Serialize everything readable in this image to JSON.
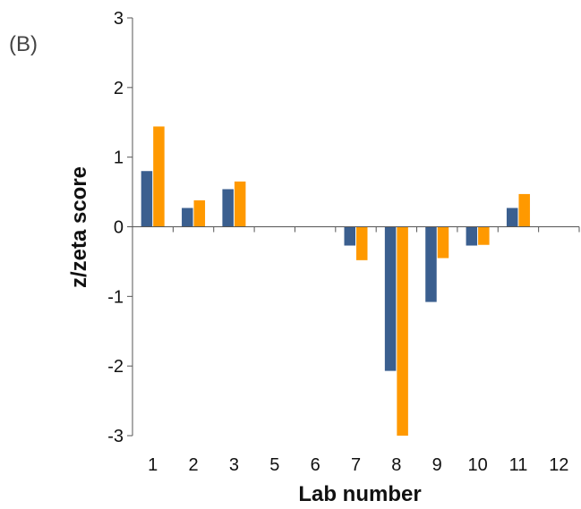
{
  "panel_label": "(B)",
  "chart_data": {
    "type": "bar",
    "title": "",
    "xlabel": "Lab number",
    "ylabel": "z/zeta score",
    "categories": [
      "1",
      "2",
      "3",
      "5",
      "6",
      "7",
      "8",
      "9",
      "10",
      "11",
      "12"
    ],
    "series": [
      {
        "color": "#3b5f8f",
        "values": [
          0.8,
          0.27,
          0.54,
          0,
          0,
          -0.27,
          -2.07,
          -1.08,
          -0.27,
          0.27,
          0
        ]
      },
      {
        "color": "#ff9900",
        "values": [
          1.44,
          0.38,
          0.65,
          0,
          0,
          -0.48,
          -3.0,
          -0.45,
          -0.26,
          0.47,
          0
        ]
      }
    ],
    "ylim": [
      -3,
      3
    ],
    "yticks": [
      "3",
      "2",
      "1",
      "0",
      "-1",
      "-2",
      "-3"
    ],
    "grid": false,
    "legend": "none"
  }
}
